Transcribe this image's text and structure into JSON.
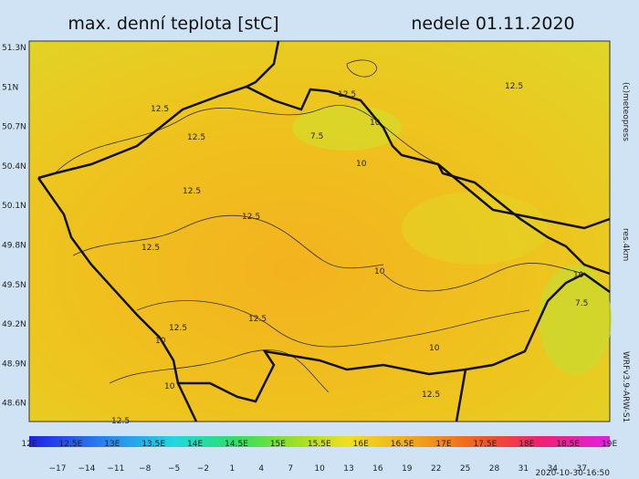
{
  "title": "max. denní teplota [stC]",
  "date": "nedele 01.11.2020",
  "lat_labels": [
    "51.3N",
    "51N",
    "50.7N",
    "50.4N",
    "50.1N",
    "49.8N",
    "49.5N",
    "49.2N",
    "48.9N",
    "48.6N"
  ],
  "lon_labels": [
    "12E",
    "12.5E",
    "13E",
    "13.5E",
    "14E",
    "14.5E",
    "15E",
    "15.5E",
    "16E",
    "16.5E",
    "17E",
    "17.5E",
    "18E",
    "18.5E",
    "19E"
  ],
  "colorbar_labels": [
    "−17",
    "−14",
    "−11",
    "−8",
    "−5",
    "−2",
    "1",
    "4",
    "7",
    "10",
    "13",
    "16",
    "19",
    "22",
    "25",
    "28",
    "31",
    "34",
    "37"
  ],
  "credit": "(c)meteopress",
  "resolution": "res.4km",
  "model": "WRFv3.9-ARW-S1",
  "timestamp": "2020-10-30-16:50",
  "contour_labels": [
    "12.5",
    "12.5",
    "12.5",
    "10",
    "7.5",
    "10",
    "12.5",
    "12.5",
    "12.5",
    "12.5",
    "10",
    "10",
    "7.5",
    "12.5",
    "10",
    "10",
    "12.5",
    "10",
    "12.5",
    "12.5"
  ]
}
